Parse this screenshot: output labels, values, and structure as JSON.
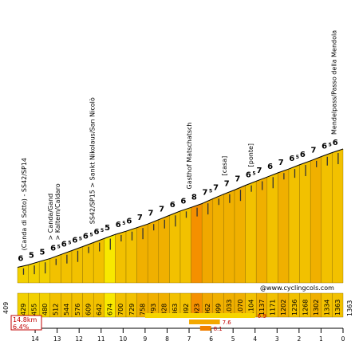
{
  "chart_data": {
    "type": "area",
    "distance_km": 14.8,
    "avg_grade_pct": 6.4,
    "start_elevation_m": 409,
    "summit_elevation_m": 1363,
    "credit": "@www.cyclingcols.com",
    "km_ticks": [
      "14",
      "13",
      "12",
      "11",
      "10",
      "9",
      "8",
      "7",
      "6",
      "5",
      "4",
      "3",
      "2",
      "1",
      "0"
    ],
    "segments": [
      {
        "grade": "6",
        "grade_frac": "",
        "end_elevation": "429",
        "color": "#f2d000"
      },
      {
        "grade": "5",
        "grade_frac": "",
        "end_elevation": "455",
        "color": "#f2d000"
      },
      {
        "grade": "5",
        "grade_frac": "",
        "end_elevation": "480",
        "color": "#f2d000"
      },
      {
        "grade": "6",
        "grade_frac": "5",
        "end_elevation": "512",
        "color": "#f2c100"
      },
      {
        "grade": "6",
        "grade_frac": "5",
        "end_elevation": "544",
        "color": "#f2c100"
      },
      {
        "grade": "6",
        "grade_frac": "5",
        "end_elevation": "576",
        "color": "#f2c100"
      },
      {
        "grade": "6",
        "grade_frac": "5",
        "end_elevation": "609",
        "color": "#f2c100"
      },
      {
        "grade": "6",
        "grade_frac": "5",
        "end_elevation": "642",
        "color": "#f2c100"
      },
      {
        "grade": "5",
        "grade_frac": "",
        "end_elevation": "674",
        "color": "#f8e800"
      },
      {
        "grade": "6",
        "grade_frac": "5",
        "end_elevation": "700",
        "color": "#f2c100"
      },
      {
        "grade": "6",
        "grade_frac": "",
        "end_elevation": "729",
        "color": "#f2c100"
      },
      {
        "grade": "7",
        "grade_frac": "",
        "end_elevation": "758",
        "color": "#f0b000"
      },
      {
        "grade": "7",
        "grade_frac": "",
        "end_elevation": "793",
        "color": "#f0b000"
      },
      {
        "grade": "7",
        "grade_frac": "",
        "end_elevation": "828",
        "color": "#f0b000"
      },
      {
        "grade": "6",
        "grade_frac": "",
        "end_elevation": "863",
        "color": "#f2c100"
      },
      {
        "grade": "6",
        "grade_frac": "",
        "end_elevation": "892",
        "color": "#f2c100"
      },
      {
        "grade": "8",
        "grade_frac": "",
        "end_elevation": "923",
        "color": "#f59000"
      },
      {
        "grade": "7",
        "grade_frac": "5",
        "end_elevation": "962",
        "color": "#f0a800"
      },
      {
        "grade": "7",
        "grade_frac": "",
        "end_elevation": "999",
        "color": "#f0b000"
      },
      {
        "grade": "7",
        "grade_frac": "",
        "end_elevation": "1033",
        "color": "#f0b000"
      },
      {
        "grade": "7",
        "grade_frac": "",
        "end_elevation": "1070",
        "color": "#f0b000"
      },
      {
        "grade": "6",
        "grade_frac": "5",
        "end_elevation": "1104",
        "color": "#f2c100"
      },
      {
        "grade": "7",
        "grade_frac": "",
        "end_elevation": "1137",
        "color": "#f0b000"
      },
      {
        "grade": "6",
        "grade_frac": "",
        "end_elevation": "1171",
        "color": "#f2c100"
      },
      {
        "grade": "7",
        "grade_frac": "",
        "end_elevation": "1202",
        "color": "#f0b000"
      },
      {
        "grade": "6",
        "grade_frac": "5",
        "end_elevation": "1236",
        "color": "#f2c100"
      },
      {
        "grade": "6",
        "grade_frac": "",
        "end_elevation": "1268",
        "color": "#f2c100"
      },
      {
        "grade": "7",
        "grade_frac": "",
        "end_elevation": "1302",
        "color": "#f0b000"
      },
      {
        "grade": "6",
        "grade_frac": "5",
        "end_elevation": "1334",
        "color": "#f2c100"
      },
      {
        "grade": "6",
        "grade_frac": "",
        "end_elevation": "1363",
        "color": "#f2c100"
      }
    ],
    "landmarks": [
      {
        "name": "(Canda di Sotto) - SS42/SP14",
        "km": 14.4
      },
      {
        "name": "> Canda/Gand\n> Kaltern/Caldaro",
        "km": 13.2
      },
      {
        "name": "SS42/SP15 > Sankt Nikolaus/San Nicolò",
        "km": 11.3
      },
      {
        "name": "Gasthof Matschatsch",
        "km": 6.9
      },
      {
        "name": "[casa]",
        "km": 5.3
      },
      {
        "name": "[ponte]",
        "km": 4.1
      },
      {
        "name": "Mendelpass/Passo della Mendola",
        "km": 0.3
      }
    ],
    "max_grade_bars": [
      {
        "label": "6.9",
        "km_start": 9.0,
        "km_end": 4.0,
        "level": 1
      },
      {
        "label": "7.6",
        "km_start": 7.0,
        "km_end": 5.6,
        "level": 2
      },
      {
        "label": "8.1",
        "km_start": 6.5,
        "km_end": 6.0,
        "level": 3
      }
    ]
  }
}
